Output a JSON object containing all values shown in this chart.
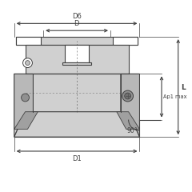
{
  "bg_color": "#ffffff",
  "body_color": "#d0d0d0",
  "body_color2": "#b8b8b8",
  "body_color3": "#a0a0a0",
  "line_color": "#404040",
  "dim_color": "#404040",
  "white": "#ffffff",
  "labels": {
    "D6": "D6",
    "D": "D",
    "D1": "D1",
    "L": "L",
    "Ap1max": "Ap1 max",
    "angle": "90°"
  }
}
